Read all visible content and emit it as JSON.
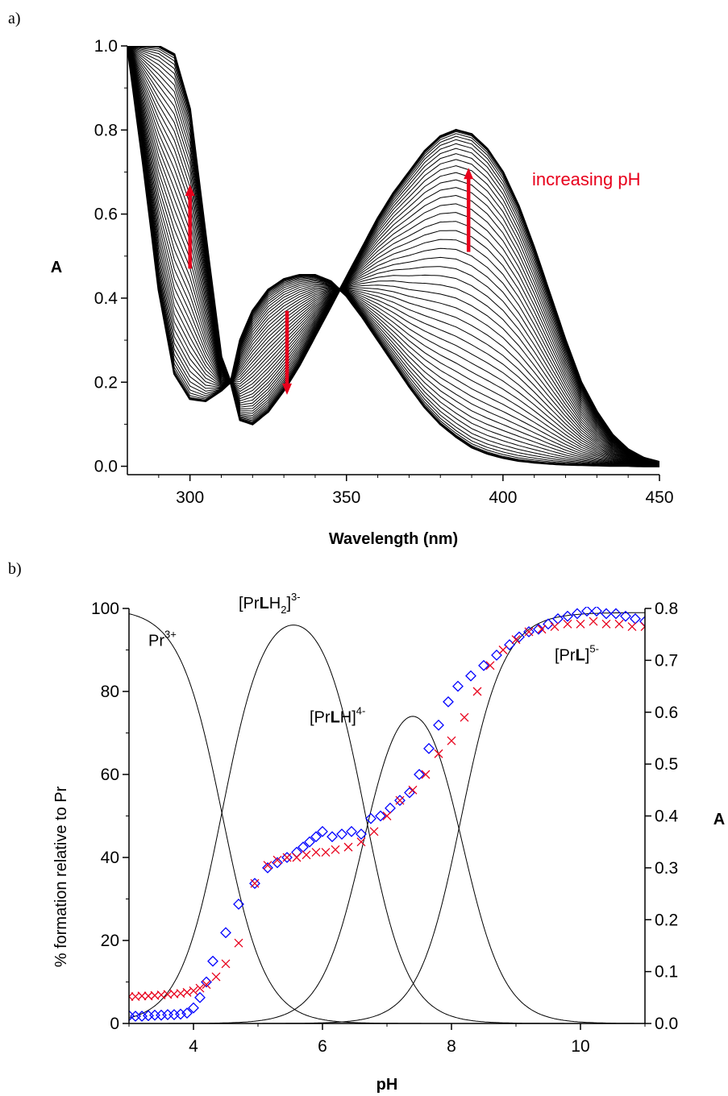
{
  "panels": {
    "a_label": "a)",
    "b_label": "b)"
  },
  "chart_data": [
    {
      "type": "line",
      "xlabel": "Wavelength (nm)",
      "ylabel": "A",
      "xlim": [
        280,
        450
      ],
      "ylim": [
        -0.02,
        1.0
      ],
      "xticks": [
        "300",
        "350",
        "400",
        "450"
      ],
      "yticks": [
        "0.0",
        "0.2",
        "0.4",
        "0.6",
        "0.8",
        "1.0"
      ],
      "annotation": "increasing pH",
      "annotation_color": "#e8001c",
      "spectra_count": 48,
      "series": [
        {
          "x": [
            280,
            285,
            290,
            295,
            300,
            305,
            310,
            313,
            316,
            320,
            325,
            330,
            335,
            340,
            345,
            350,
            355,
            360,
            365,
            370,
            375,
            380,
            385,
            390,
            395,
            400,
            405,
            410,
            415,
            420,
            425,
            430,
            435,
            440,
            445,
            450
          ],
          "y": [
            1.0,
            1.0,
            1.0,
            0.98,
            0.85,
            0.55,
            0.26,
            0.2,
            0.3,
            0.37,
            0.42,
            0.445,
            0.455,
            0.455,
            0.44,
            0.405,
            0.355,
            0.3,
            0.245,
            0.19,
            0.14,
            0.1,
            0.07,
            0.045,
            0.03,
            0.02,
            0.013,
            0.009,
            0.006,
            0.004,
            0.003,
            0.002,
            0.001,
            0.001,
            0.0,
            0.0
          ]
        },
        {
          "x": [
            280,
            285,
            290,
            295,
            300,
            305,
            310,
            313,
            316,
            320,
            325,
            330,
            335,
            340,
            345,
            350,
            355,
            360,
            365,
            370,
            375,
            380,
            385,
            390,
            395,
            400,
            405,
            410,
            415,
            420,
            425,
            430,
            435,
            440,
            445,
            450
          ],
          "y": [
            1.0,
            0.72,
            0.42,
            0.22,
            0.16,
            0.155,
            0.18,
            0.2,
            0.11,
            0.1,
            0.13,
            0.18,
            0.24,
            0.31,
            0.38,
            0.45,
            0.52,
            0.59,
            0.65,
            0.7,
            0.75,
            0.785,
            0.8,
            0.79,
            0.755,
            0.7,
            0.62,
            0.52,
            0.41,
            0.3,
            0.2,
            0.13,
            0.075,
            0.04,
            0.02,
            0.01
          ]
        }
      ]
    },
    {
      "type": "scatter",
      "xlabel": "pH",
      "ylabel": "% formation relative to Pr",
      "ylabel_right": "A",
      "xlim": [
        3,
        11
      ],
      "ylim": [
        0,
        100
      ],
      "ylim_right": [
        0,
        0.8
      ],
      "xticks": [
        "4",
        "6",
        "8",
        "10"
      ],
      "yticks": [
        "0",
        "20",
        "40",
        "60",
        "80",
        "100"
      ],
      "yticks_right": [
        "0.0",
        "0.1",
        "0.2",
        "0.3",
        "0.4",
        "0.5",
        "0.6",
        "0.7",
        "0.8"
      ],
      "species_labels": [
        {
          "text": "Pr",
          "sup": "3+"
        },
        {
          "text": "[Pr",
          "bold": "L",
          "after": "H",
          "sub": "2",
          "close": "]",
          "sup": "3-"
        },
        {
          "text": "[Pr",
          "bold": "L",
          "after": "H",
          "close": "]",
          "sup": "4-"
        },
        {
          "text": "[Pr",
          "bold": "L",
          "close": "]",
          "sup": "5-"
        }
      ],
      "species_curves": [
        {
          "pKa_left": null,
          "pKa_right": 4.45,
          "max": 100
        },
        {
          "pKa_left": 4.45,
          "pKa_right": 6.65,
          "max": 96
        },
        {
          "pKa_left": 6.65,
          "pKa_right": 8.15,
          "max": 74
        },
        {
          "pKa_left": 8.15,
          "pKa_right": null,
          "max": 99
        }
      ],
      "series": [
        {
          "marker": "diamond",
          "color": "#0000ff",
          "x": [
            3.0,
            3.1,
            3.2,
            3.3,
            3.4,
            3.5,
            3.6,
            3.7,
            3.8,
            3.9,
            4.0,
            4.1,
            4.2,
            4.3,
            4.5,
            4.7,
            4.95,
            5.15,
            5.3,
            5.45,
            5.6,
            5.7,
            5.8,
            5.9,
            6.0,
            6.15,
            6.3,
            6.45,
            6.6,
            6.75,
            6.9,
            7.05,
            7.2,
            7.35,
            7.5,
            7.65,
            7.8,
            7.95,
            8.1,
            8.3,
            8.5,
            8.7,
            8.9,
            9.05,
            9.2,
            9.35,
            9.5,
            9.65,
            9.8,
            9.95,
            10.1,
            10.25,
            10.4,
            10.55,
            10.7,
            10.85,
            11.0
          ],
          "y": [
            0.015,
            0.014,
            0.014,
            0.015,
            0.016,
            0.016,
            0.017,
            0.017,
            0.018,
            0.02,
            0.03,
            0.05,
            0.08,
            0.12,
            0.175,
            0.23,
            0.27,
            0.3,
            0.31,
            0.32,
            0.33,
            0.34,
            0.35,
            0.36,
            0.37,
            0.36,
            0.365,
            0.37,
            0.365,
            0.395,
            0.4,
            0.415,
            0.43,
            0.445,
            0.48,
            0.53,
            0.575,
            0.62,
            0.65,
            0.67,
            0.69,
            0.71,
            0.73,
            0.745,
            0.755,
            0.76,
            0.77,
            0.78,
            0.785,
            0.79,
            0.795,
            0.795,
            0.79,
            0.79,
            0.785,
            0.78,
            0.775
          ]
        },
        {
          "marker": "cross",
          "color": "#e8001c",
          "x": [
            3.0,
            3.1,
            3.2,
            3.3,
            3.4,
            3.5,
            3.6,
            3.7,
            3.8,
            3.9,
            4.0,
            4.1,
            4.2,
            4.35,
            4.5,
            4.7,
            4.95,
            5.15,
            5.3,
            5.45,
            5.6,
            5.75,
            5.9,
            6.05,
            6.2,
            6.4,
            6.6,
            6.8,
            7.0,
            7.2,
            7.4,
            7.6,
            7.8,
            8.0,
            8.2,
            8.4,
            8.6,
            8.8,
            9.0,
            9.2,
            9.4,
            9.6,
            9.8,
            10.0,
            10.2,
            10.4,
            10.6,
            10.8,
            11.0
          ],
          "y": [
            0.052,
            0.052,
            0.053,
            0.053,
            0.054,
            0.055,
            0.056,
            0.057,
            0.058,
            0.06,
            0.063,
            0.068,
            0.075,
            0.09,
            0.115,
            0.155,
            0.27,
            0.305,
            0.315,
            0.32,
            0.32,
            0.325,
            0.33,
            0.33,
            0.335,
            0.34,
            0.35,
            0.37,
            0.4,
            0.43,
            0.45,
            0.48,
            0.52,
            0.545,
            0.59,
            0.64,
            0.69,
            0.72,
            0.74,
            0.755,
            0.76,
            0.765,
            0.77,
            0.77,
            0.775,
            0.77,
            0.77,
            0.765,
            0.765
          ]
        }
      ]
    }
  ]
}
